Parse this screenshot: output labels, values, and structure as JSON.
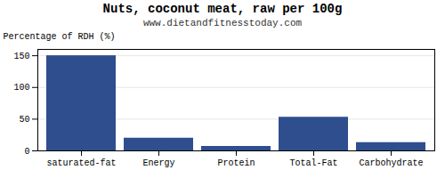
{
  "chart_data": {
    "type": "bar",
    "title": "Nuts, coconut meat, raw per 100g",
    "subtitle": "www.dietandfitnesstoday.com",
    "categories": [
      "saturated-fat",
      "Energy",
      "Protein",
      "Total-Fat",
      "Carbohydrate"
    ],
    "values": [
      150,
      20,
      7,
      53,
      13
    ],
    "color": "#2e4e8e",
    "ylabel": "Percentage of RDH (%)",
    "ylim": [
      0,
      160
    ],
    "yticks": [
      0,
      50,
      100,
      150
    ],
    "grid": true
  }
}
